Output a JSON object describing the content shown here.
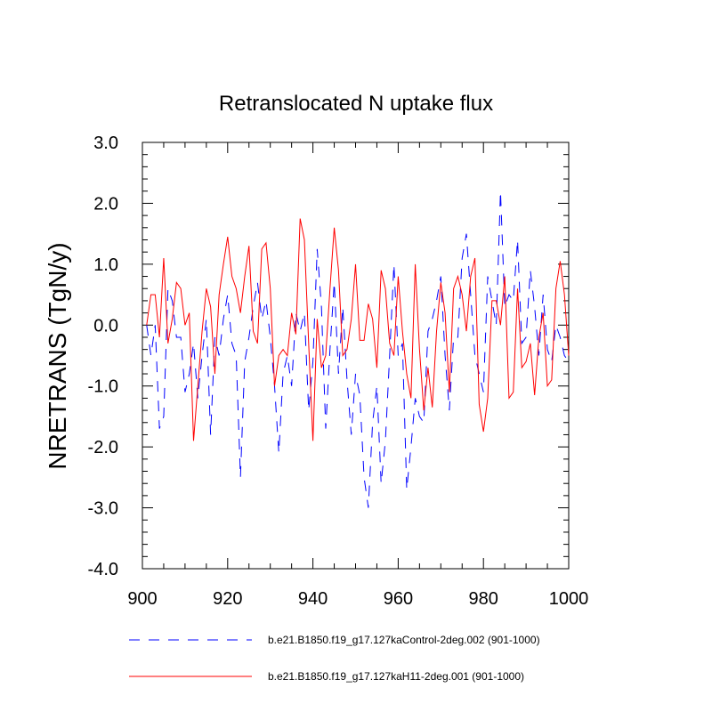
{
  "chart_data": {
    "type": "line",
    "title": "Retranslocated N uptake flux",
    "xlabel": "",
    "ylabel": "NRETRANS  (TgN/y)",
    "xlim": [
      900,
      1000
    ],
    "ylim": [
      -4.0,
      3.0
    ],
    "xticks": [
      900,
      920,
      940,
      960,
      980,
      1000
    ],
    "xtick_labels": [
      "900",
      "920",
      "940",
      "960",
      "980",
      "1000"
    ],
    "yticks": [
      -4,
      -3,
      -2,
      -1,
      0,
      1,
      2,
      3
    ],
    "ytick_labels": [
      "-4.0",
      "-3.0",
      "-2.0",
      "-1.0",
      "0.0",
      "1.0",
      "2.0",
      "3.0"
    ],
    "grid": false,
    "legend_position": "bottom",
    "x": [
      901,
      902,
      903,
      904,
      905,
      906,
      907,
      908,
      909,
      910,
      911,
      912,
      913,
      914,
      915,
      916,
      917,
      918,
      919,
      920,
      921,
      922,
      923,
      924,
      925,
      926,
      927,
      928,
      929,
      930,
      931,
      932,
      933,
      934,
      935,
      936,
      937,
      938,
      939,
      940,
      941,
      942,
      943,
      944,
      945,
      946,
      947,
      948,
      949,
      950,
      951,
      952,
      953,
      954,
      955,
      956,
      957,
      958,
      959,
      960,
      961,
      962,
      963,
      964,
      965,
      966,
      967,
      968,
      969,
      970,
      971,
      972,
      973,
      974,
      975,
      976,
      977,
      978,
      979,
      980,
      981,
      982,
      983,
      984,
      985,
      986,
      987,
      988,
      989,
      990,
      991,
      992,
      993,
      994,
      995,
      996,
      997,
      998,
      999,
      1000
    ],
    "series": [
      {
        "name": "b.e21.B1850.f19_g17.127kaControl-2deg.002 (901-1000)",
        "color": "#0000ff",
        "style": "dashed",
        "values": [
          0.0,
          -0.5,
          0.0,
          -1.7,
          -1.5,
          0.6,
          0.4,
          -0.2,
          -0.2,
          -1.1,
          -0.8,
          -0.3,
          -1.2,
          -0.5,
          0.1,
          -1.8,
          -0.2,
          -0.5,
          0.1,
          0.5,
          -0.3,
          -0.5,
          -2.5,
          -0.6,
          -0.2,
          0.3,
          0.7,
          0.1,
          0.4,
          -0.2,
          -1.0,
          -2.1,
          -0.8,
          -0.5,
          -1.0,
          0.2,
          -0.1,
          0.2,
          -1.4,
          -0.6,
          1.25,
          0.3,
          -1.7,
          -0.4,
          0.7,
          -0.8,
          0.3,
          -0.9,
          -1.8,
          -0.8,
          -1.15,
          -2.5,
          -3.0,
          -1.6,
          -1.0,
          -2.6,
          -1.9,
          -0.5,
          1.0,
          -0.5,
          -0.3,
          -2.7,
          -2.0,
          -1.2,
          -1.5,
          -1.6,
          -0.1,
          0.1,
          0.4,
          0.8,
          -0.5,
          -1.4,
          -0.2,
          -0.2,
          1.1,
          1.5,
          0.5,
          -0.5,
          -0.8,
          -1.1,
          0.8,
          0.4,
          0.0,
          2.2,
          0.3,
          0.5,
          0.4,
          1.4,
          -0.3,
          -0.2,
          0.9,
          0.3,
          -0.5,
          0.5,
          -0.4,
          -0.6,
          0.0,
          -0.2,
          -0.5,
          -0.6
        ]
      },
      {
        "name": "b.e21.B1850.f19_g17.127kaH11-2deg.001 (901-1000)",
        "color": "#ff0000",
        "style": "solid",
        "values": [
          0.0,
          0.5,
          0.5,
          -0.2,
          1.1,
          -0.3,
          0.1,
          0.7,
          0.6,
          0.0,
          0.2,
          -1.9,
          -1.0,
          -0.1,
          0.6,
          0.3,
          -0.8,
          0.5,
          1.0,
          1.45,
          0.8,
          0.6,
          0.2,
          0.8,
          1.3,
          -0.1,
          -0.3,
          1.25,
          1.35,
          0.6,
          -1.0,
          -0.5,
          -0.4,
          -0.5,
          0.2,
          -0.15,
          1.75,
          1.4,
          -0.3,
          -1.9,
          0.1,
          -0.7,
          -0.5,
          0.6,
          1.6,
          0.9,
          -0.5,
          -0.4,
          0.1,
          1.0,
          -0.25,
          -0.25,
          0.35,
          0.1,
          -0.7,
          0.9,
          0.6,
          -0.3,
          -0.5,
          0.8,
          -0.1,
          -0.8,
          -1.2,
          1.0,
          -0.4,
          -1.4,
          -0.7,
          -1.35,
          -0.1,
          0.7,
          0.2,
          -1.1,
          0.6,
          0.8,
          0.5,
          -0.1,
          0.8,
          1.1,
          -1.3,
          -1.75,
          -1.2,
          0.4,
          0.4,
          0.0,
          0.8,
          -1.2,
          -1.1,
          0.6,
          -0.7,
          -0.6,
          -0.3,
          -1.15,
          -0.2,
          0.2,
          -1.0,
          -0.9,
          0.6,
          1.05,
          0.5,
          -0.5
        ]
      }
    ]
  }
}
